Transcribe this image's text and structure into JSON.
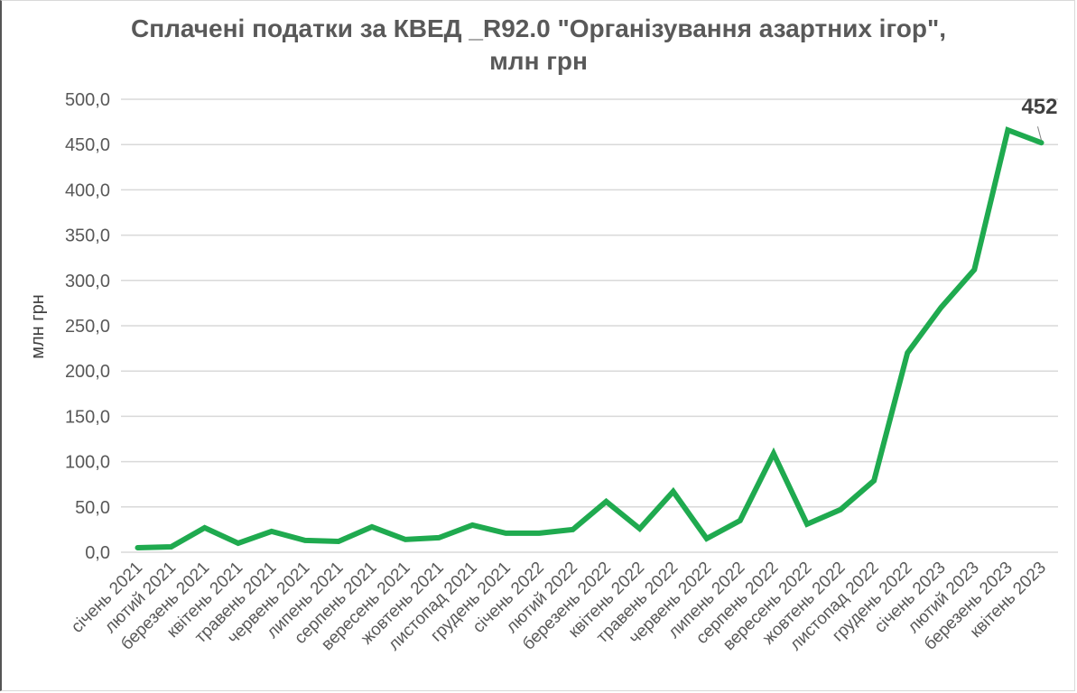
{
  "chart_data": {
    "type": "line",
    "title": "Сплачені податки за КВЕД _R92.0 \"Організування азартних ігор\", млн грн",
    "title_lines": [
      "Сплачені податки за КВЕД _R92.0 \"Організування азартних ігор\",",
      "млн грн"
    ],
    "xlabel": "",
    "ylabel": "млн грн",
    "ylim": [
      0,
      500
    ],
    "yticks": [
      "0,0",
      "50,0",
      "100,0",
      "150,0",
      "200,0",
      "250,0",
      "300,0",
      "350,0",
      "400,0",
      "450,0",
      "500,0"
    ],
    "grid": true,
    "legend": "none",
    "categories": [
      "січень 2021",
      "лютий 2021",
      "березень 2021",
      "квітень 2021",
      "травень 2021",
      "червень 2021",
      "липень 2021",
      "серпень 2021",
      "вересень 2021",
      "жовтень 2021",
      "листопад 2021",
      "грудень 2021",
      "січень 2022",
      "лютий 2022",
      "березень 2022",
      "квітень 2022",
      "травень 2022",
      "червень 2022",
      "липень 2022",
      "серпень 2022",
      "вересень 2022",
      "жовтень 2022",
      "листопад 2022",
      "грудень 2022",
      "січень 2023",
      "лютий 2023",
      "березень 2023",
      "квітень 2023"
    ],
    "series": [
      {
        "name": "Сплачені податки",
        "color": "#1faa4f",
        "values": [
          5,
          6,
          27,
          10,
          23,
          13,
          12,
          28,
          14,
          16,
          30,
          21,
          21,
          25,
          56,
          26,
          67,
          15,
          35,
          109,
          31,
          47,
          79,
          220,
          270,
          312,
          466,
          452
        ]
      }
    ],
    "annotations": [
      {
        "category": "квітень 2023",
        "text": "452"
      }
    ]
  }
}
